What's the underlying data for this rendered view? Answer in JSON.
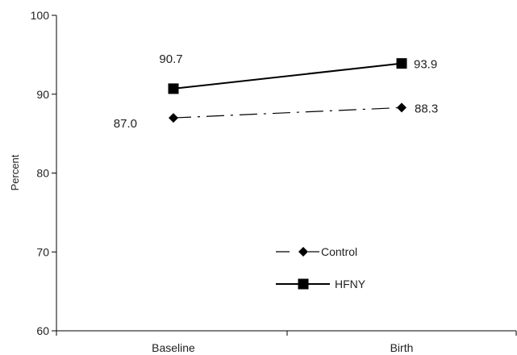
{
  "chart_data": {
    "type": "line",
    "categories": [
      "Baseline",
      "Birth"
    ],
    "series": [
      {
        "name": "Control",
        "values": [
          87.0,
          88.3
        ],
        "marker": "diamond",
        "line": "dashed",
        "color": "#000000"
      },
      {
        "name": "HFNY",
        "values": [
          90.7,
          93.9
        ],
        "marker": "square",
        "line": "solid",
        "color": "#000000"
      }
    ],
    "data_labels": [
      {
        "series": "Control",
        "category": "Baseline",
        "text": "87.0"
      },
      {
        "series": "Control",
        "category": "Birth",
        "text": "88.3"
      },
      {
        "series": "HFNY",
        "category": "Baseline",
        "text": "90.7"
      },
      {
        "series": "HFNY",
        "category": "Birth",
        "text": "93.9"
      }
    ],
    "ylabel": "Percent",
    "ylim": [
      60,
      100
    ],
    "yticks": [
      "60",
      "70",
      "80",
      "90",
      "100"
    ],
    "grid": false,
    "legend_position": "lower-center"
  }
}
